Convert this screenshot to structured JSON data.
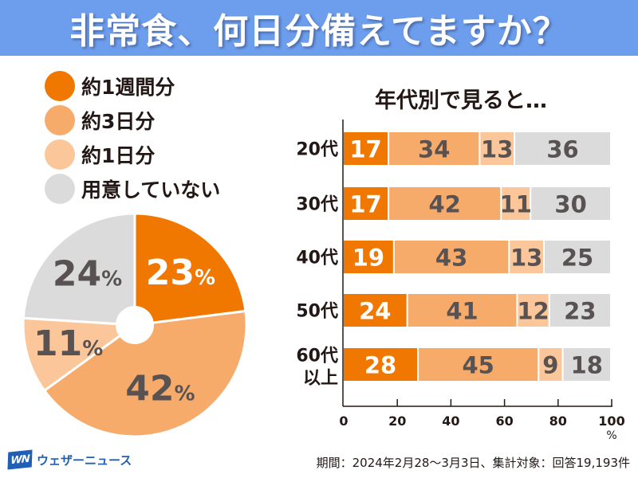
{
  "header": {
    "title": "非常食、何日分備えてますか？"
  },
  "colors": {
    "week": "#f07800",
    "three_days": "#f7ab6a",
    "one_day": "#fbc79a",
    "none": "#dcdbdb",
    "label_dark": "#595252",
    "label_light": "#ffffff",
    "header_bg": "#6d9eed"
  },
  "legend": [
    {
      "key": "week",
      "label": "約1週間分"
    },
    {
      "key": "three_days",
      "label": "約3日分"
    },
    {
      "key": "one_day",
      "label": "約1日分"
    },
    {
      "key": "none",
      "label": "用意していない"
    }
  ],
  "subtitle": "年代別で見ると…",
  "chart_data": [
    {
      "type": "pie",
      "title": "非常食、何日分備えてますか？",
      "categories": [
        "約1週間分",
        "約3日分",
        "約1日分",
        "用意していない"
      ],
      "values": [
        23,
        42,
        11,
        24
      ],
      "labels": [
        "23%",
        "42%",
        "11%",
        "24%"
      ],
      "unit": "%",
      "start": "top",
      "direction": "clockwise",
      "donut_hole": true
    },
    {
      "type": "bar",
      "orientation": "horizontal",
      "stacked": true,
      "title": "年代別で見ると…",
      "categories": [
        "20代",
        "30代",
        "40代",
        "50代",
        "60代以上"
      ],
      "series": [
        {
          "name": "約1週間分",
          "key": "week",
          "values": [
            17,
            17,
            19,
            24,
            28
          ]
        },
        {
          "name": "約3日分",
          "key": "three_days",
          "values": [
            34,
            42,
            43,
            41,
            45
          ]
        },
        {
          "name": "約1日分",
          "key": "one_day",
          "values": [
            13,
            11,
            13,
            12,
            9
          ]
        },
        {
          "name": "用意していない",
          "key": "none",
          "values": [
            36,
            30,
            25,
            23,
            18
          ]
        }
      ],
      "xlim": [
        0,
        100
      ],
      "xticks": [
        0,
        20,
        40,
        60,
        80,
        100
      ],
      "xlabel": "%",
      "grid": false
    }
  ],
  "footer": {
    "logo_mark": "WN",
    "logo_text": "ウェザーニュース",
    "note": "期間：2024年2月28～3月3日、集計対象：回答19,193件"
  }
}
